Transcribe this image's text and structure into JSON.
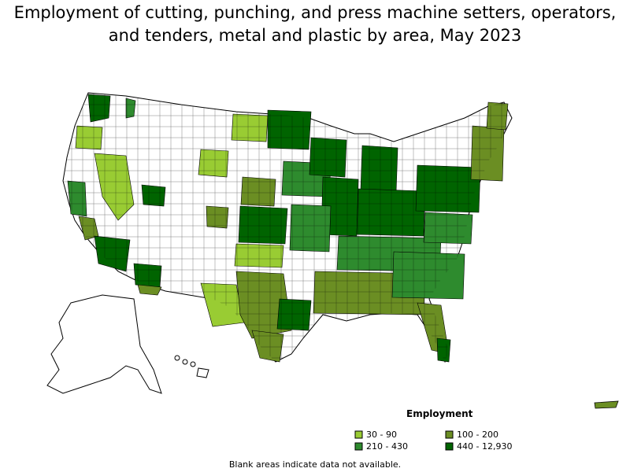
{
  "title_line1": "Employment of cutting, punching, and press machine setters, operators,",
  "title_line2": "and tenders, metal and plastic by area, May 2023",
  "legend": {
    "title": "Employment",
    "items": [
      {
        "label": "30 - 90",
        "color": "#99cc33"
      },
      {
        "label": "100 - 200",
        "color": "#6b8e23"
      },
      {
        "label": "210 - 430",
        "color": "#2e8b2e"
      },
      {
        "label": "440 - 12,930",
        "color": "#006400"
      }
    ]
  },
  "note": "Blank areas indicate data not available."
}
